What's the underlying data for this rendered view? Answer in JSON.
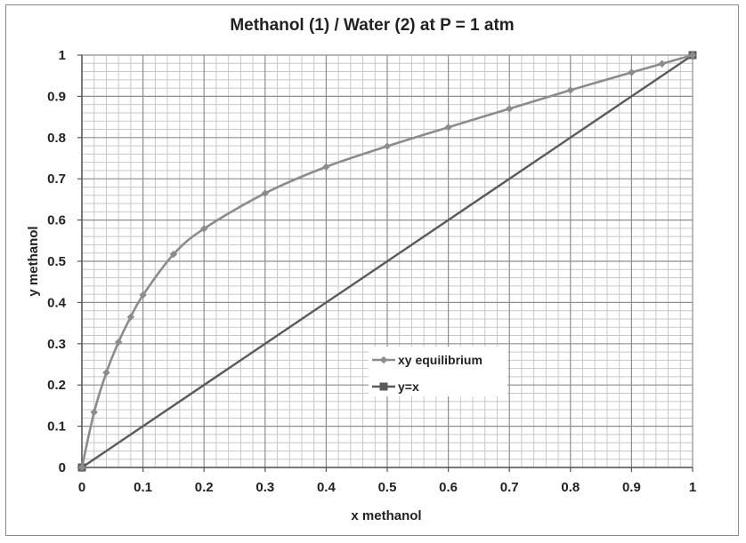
{
  "chart_data": {
    "type": "line",
    "title": "Methanol (1) / Water (2) at P = 1 atm",
    "xlabel": "x methanol",
    "ylabel": "y methanol",
    "xlim": [
      0,
      1
    ],
    "ylim": [
      0,
      1
    ],
    "xticks": [
      "0",
      "0.1",
      "0.2",
      "0.3",
      "0.4",
      "0.5",
      "0.6",
      "0.7",
      "0.8",
      "0.9",
      "1"
    ],
    "yticks": [
      "0",
      "0.1",
      "0.2",
      "0.3",
      "0.4",
      "0.5",
      "0.6",
      "0.7",
      "0.8",
      "0.9",
      "1"
    ],
    "grid": true,
    "minor_grid": true,
    "legend_position": "center-right",
    "series": [
      {
        "name": "xy equilibrium",
        "marker": "diamond",
        "color": "#8c8c8c",
        "x": [
          0,
          0.02,
          0.04,
          0.06,
          0.08,
          0.1,
          0.15,
          0.2,
          0.3,
          0.4,
          0.5,
          0.6,
          0.7,
          0.8,
          0.9,
          0.95,
          1.0
        ],
        "y": [
          0,
          0.134,
          0.23,
          0.304,
          0.365,
          0.418,
          0.517,
          0.579,
          0.665,
          0.729,
          0.779,
          0.825,
          0.87,
          0.915,
          0.958,
          0.979,
          1.0
        ]
      },
      {
        "name": "y=x",
        "marker": "square",
        "color": "#5a5a5a",
        "x": [
          0,
          1
        ],
        "y": [
          0,
          1
        ]
      }
    ]
  }
}
